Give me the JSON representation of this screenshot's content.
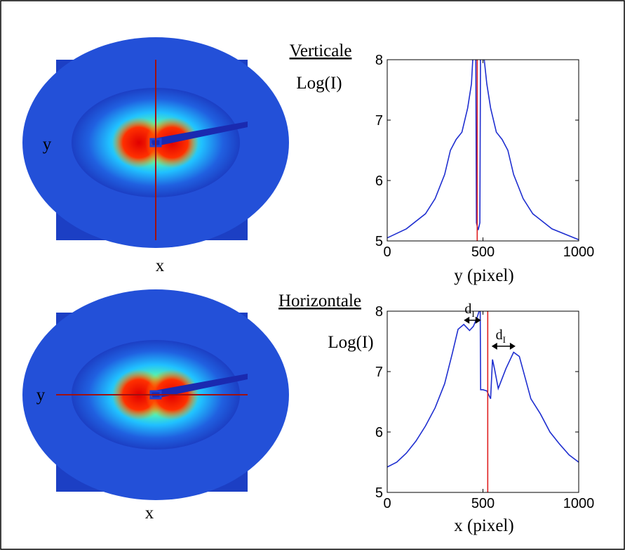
{
  "heatmaps": [
    {
      "x_label": "x",
      "y_label": "y"
    },
    {
      "x_label": "x",
      "y_label": "y"
    }
  ],
  "chart_data": [
    {
      "type": "line",
      "title": "Verticale",
      "y_label": "Log(I)",
      "x_label": "y (pixel)",
      "x": [
        0,
        100,
        200,
        250,
        300,
        330,
        360,
        390,
        420,
        440,
        450,
        462,
        466,
        475,
        484,
        488,
        500,
        520,
        540,
        570,
        600,
        630,
        660,
        710,
        760,
        860,
        1000
      ],
      "series": [
        {
          "color": "#1f2fd0",
          "values": [
            5.05,
            5.2,
            5.45,
            5.7,
            6.1,
            6.5,
            6.68,
            6.8,
            7.2,
            7.6,
            8.2,
            8.6,
            5.3,
            5.18,
            5.3,
            8.6,
            8.2,
            7.6,
            7.2,
            6.8,
            6.68,
            6.5,
            6.1,
            5.7,
            5.45,
            5.2,
            5.02
          ]
        }
      ],
      "reference_line": 470,
      "reference_color": "#e02020",
      "xlim": [
        0,
        1000
      ],
      "ylim": [
        5,
        8
      ],
      "xticks": [
        0,
        500,
        1000
      ],
      "yticks": [
        5,
        6,
        7,
        8
      ],
      "annotations": []
    },
    {
      "type": "line",
      "title": "Horizontale",
      "y_label": "Log(I)",
      "x_label": "x (pixel)",
      "x": [
        0,
        50,
        100,
        150,
        200,
        250,
        300,
        340,
        370,
        400,
        430,
        450,
        470,
        480,
        485,
        488,
        500,
        520,
        540,
        550,
        560,
        580,
        620,
        660,
        690,
        720,
        750,
        800,
        850,
        900,
        950,
        1000
      ],
      "series": [
        {
          "color": "#1f2fd0",
          "values": [
            5.42,
            5.5,
            5.65,
            5.85,
            6.1,
            6.4,
            6.8,
            7.3,
            7.7,
            7.78,
            7.68,
            7.75,
            7.9,
            8.0,
            8.4,
            6.7,
            6.7,
            6.68,
            6.55,
            7.2,
            7.05,
            6.72,
            7.05,
            7.32,
            7.25,
            6.9,
            6.55,
            6.3,
            6.0,
            5.8,
            5.62,
            5.5
          ]
        }
      ],
      "reference_line": 525,
      "reference_color": "#e02020",
      "xlim": [
        0,
        1000
      ],
      "ylim": [
        5,
        8
      ],
      "xticks": [
        0,
        500,
        1000
      ],
      "yticks": [
        5,
        6,
        7,
        8
      ],
      "annotations": [
        {
          "text": "d",
          "subscript": "I",
          "x": [
            400,
            490
          ],
          "y": 7.85
        },
        {
          "text": "d",
          "subscript": "I",
          "x": [
            545,
            670
          ],
          "y": 7.42
        }
      ]
    }
  ]
}
